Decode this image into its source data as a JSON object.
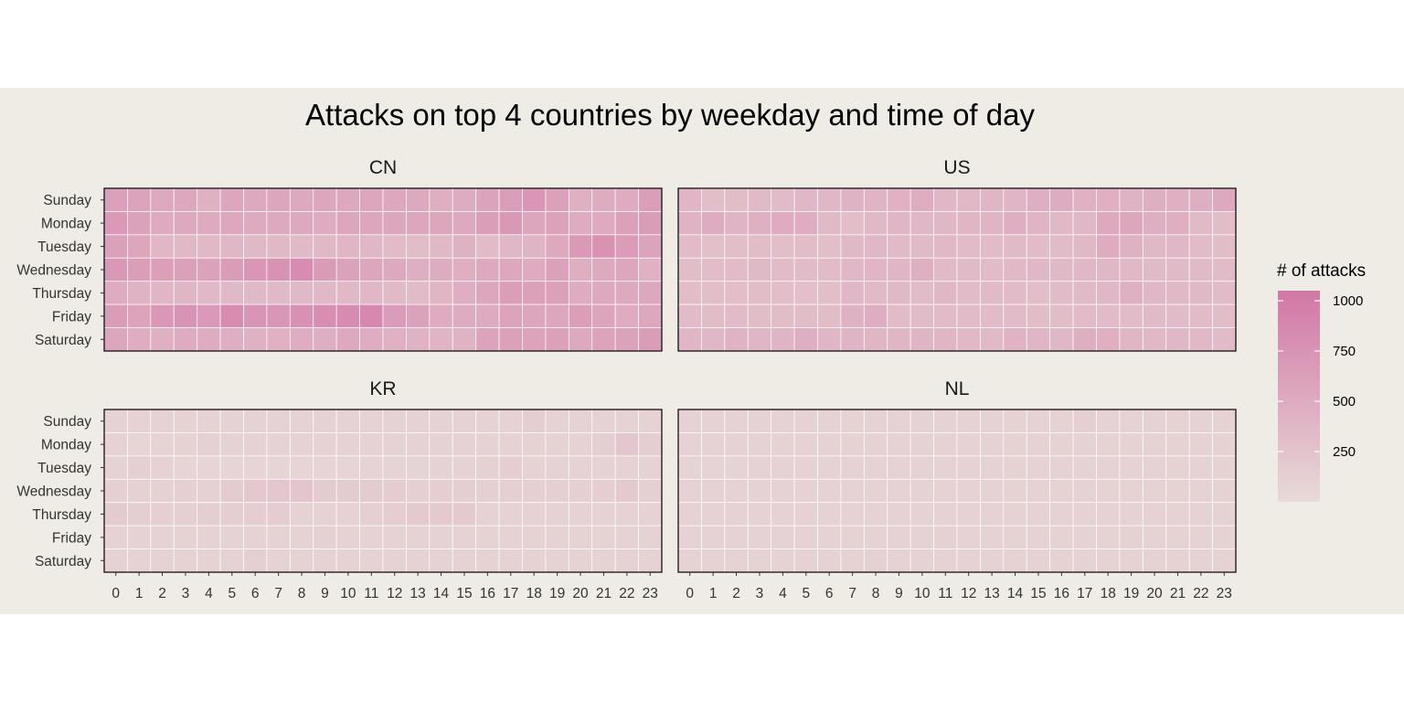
{
  "chart_data": {
    "type": "heatmap",
    "title": "Attacks on top 4 countries by weekday and time of day",
    "x_categories": [
      "0",
      "1",
      "2",
      "3",
      "4",
      "5",
      "6",
      "7",
      "8",
      "9",
      "10",
      "11",
      "12",
      "13",
      "14",
      "15",
      "16",
      "17",
      "18",
      "19",
      "20",
      "21",
      "22",
      "23"
    ],
    "y_categories": [
      "Sunday",
      "Monday",
      "Tuesday",
      "Wednesday",
      "Thursday",
      "Friday",
      "Saturday"
    ],
    "legend": {
      "title": "# of attacks",
      "ticks": [
        250,
        500,
        750,
        1000
      ],
      "range": [
        0,
        1050
      ],
      "color_low": "#e8dbd8",
      "color_high": "#d277a5",
      "position": "right"
    },
    "panels": [
      {
        "name": "CN",
        "values": [
          [
            620,
            580,
            520,
            540,
            430,
            550,
            530,
            560,
            530,
            560,
            540,
            560,
            540,
            520,
            470,
            490,
            580,
            640,
            720,
            620,
            450,
            490,
            500,
            640
          ],
          [
            680,
            600,
            510,
            520,
            510,
            540,
            510,
            530,
            520,
            500,
            560,
            550,
            550,
            550,
            550,
            530,
            640,
            700,
            560,
            600,
            490,
            510,
            620,
            650
          ],
          [
            610,
            550,
            380,
            370,
            370,
            380,
            360,
            360,
            350,
            360,
            400,
            380,
            330,
            320,
            360,
            430,
            330,
            380,
            410,
            520,
            680,
            760,
            660,
            580
          ],
          [
            700,
            640,
            630,
            620,
            600,
            650,
            720,
            760,
            830,
            670,
            600,
            560,
            530,
            460,
            490,
            470,
            530,
            540,
            500,
            620,
            470,
            520,
            560,
            440
          ],
          [
            500,
            420,
            400,
            400,
            360,
            360,
            360,
            360,
            360,
            370,
            370,
            380,
            350,
            340,
            390,
            460,
            550,
            640,
            620,
            620,
            490,
            520,
            530,
            540
          ],
          [
            650,
            590,
            700,
            750,
            680,
            830,
            730,
            720,
            780,
            810,
            840,
            870,
            660,
            600,
            500,
            490,
            510,
            580,
            560,
            560,
            640,
            570,
            500,
            540
          ],
          [
            550,
            480,
            450,
            500,
            490,
            460,
            430,
            440,
            480,
            460,
            520,
            480,
            440,
            420,
            410,
            420,
            580,
            620,
            590,
            620,
            520,
            590,
            600,
            650
          ]
        ]
      },
      {
        "name": "US",
        "values": [
          [
            400,
            300,
            320,
            350,
            330,
            380,
            380,
            420,
            410,
            440,
            480,
            380,
            370,
            390,
            400,
            460,
            490,
            440,
            450,
            420,
            470,
            450,
            460,
            520
          ],
          [
            420,
            490,
            410,
            450,
            500,
            480,
            350,
            300,
            360,
            400,
            380,
            380,
            390,
            410,
            460,
            410,
            370,
            380,
            530,
            560,
            460,
            470,
            350,
            320
          ],
          [
            330,
            280,
            300,
            320,
            300,
            320,
            300,
            360,
            380,
            350,
            350,
            370,
            330,
            330,
            350,
            330,
            340,
            360,
            490,
            430,
            360,
            380,
            330,
            320
          ],
          [
            320,
            310,
            340,
            360,
            340,
            330,
            330,
            380,
            400,
            400,
            450,
            350,
            350,
            340,
            370,
            380,
            360,
            380,
            380,
            370,
            350,
            350,
            350,
            330
          ],
          [
            320,
            300,
            300,
            320,
            300,
            290,
            300,
            380,
            350,
            360,
            330,
            380,
            340,
            350,
            330,
            300,
            340,
            350,
            380,
            450,
            380,
            370,
            360,
            330
          ],
          [
            340,
            320,
            330,
            320,
            320,
            320,
            320,
            430,
            480,
            330,
            330,
            330,
            330,
            330,
            330,
            320,
            320,
            330,
            330,
            330,
            350,
            340,
            330,
            320
          ],
          [
            400,
            380,
            420,
            400,
            410,
            460,
            400,
            410,
            390,
            390,
            410,
            390,
            370,
            350,
            420,
            400,
            380,
            470,
            450,
            390,
            370,
            380,
            370,
            340
          ]
        ]
      },
      {
        "name": "KR",
        "values": [
          [
            90,
            90,
            110,
            110,
            110,
            90,
            90,
            90,
            90,
            90,
            90,
            90,
            100,
            90,
            90,
            90,
            110,
            110,
            150,
            110,
            110,
            110,
            110,
            110
          ],
          [
            90,
            70,
            80,
            100,
            120,
            110,
            100,
            90,
            90,
            90,
            90,
            100,
            100,
            90,
            90,
            90,
            100,
            110,
            100,
            110,
            100,
            140,
            210,
            140
          ],
          [
            110,
            130,
            90,
            70,
            70,
            70,
            60,
            70,
            60,
            60,
            70,
            80,
            80,
            80,
            90,
            110,
            120,
            140,
            110,
            100,
            100,
            110,
            110,
            100
          ],
          [
            130,
            120,
            120,
            130,
            120,
            170,
            200,
            210,
            230,
            170,
            170,
            170,
            160,
            130,
            150,
            140,
            130,
            130,
            130,
            130,
            130,
            150,
            180,
            130
          ],
          [
            170,
            140,
            130,
            130,
            140,
            140,
            150,
            160,
            110,
            110,
            110,
            130,
            150,
            180,
            180,
            190,
            100,
            100,
            90,
            100,
            110,
            110,
            110,
            90
          ],
          [
            90,
            90,
            90,
            100,
            100,
            90,
            100,
            100,
            100,
            120,
            110,
            110,
            100,
            100,
            110,
            100,
            110,
            100,
            100,
            110,
            110,
            110,
            100,
            100
          ],
          [
            110,
            90,
            100,
            100,
            100,
            110,
            130,
            100,
            110,
            100,
            110,
            100,
            100,
            100,
            100,
            100,
            100,
            100,
            100,
            100,
            110,
            100,
            100,
            100
          ]
        ]
      },
      {
        "name": "NL",
        "values": [
          [
            90,
            90,
            90,
            100,
            100,
            100,
            100,
            100,
            100,
            100,
            100,
            110,
            100,
            110,
            110,
            110,
            110,
            130,
            110,
            110,
            100,
            100,
            100,
            100
          ],
          [
            90,
            90,
            90,
            100,
            100,
            100,
            100,
            100,
            100,
            100,
            100,
            100,
            100,
            100,
            100,
            100,
            100,
            100,
            100,
            100,
            100,
            100,
            100,
            100
          ],
          [
            80,
            80,
            80,
            90,
            90,
            90,
            90,
            90,
            90,
            90,
            100,
            100,
            100,
            100,
            110,
            100,
            100,
            100,
            100,
            100,
            100,
            100,
            100,
            100
          ],
          [
            90,
            90,
            90,
            90,
            90,
            90,
            90,
            90,
            100,
            100,
            100,
            100,
            100,
            100,
            100,
            100,
            100,
            100,
            100,
            100,
            100,
            100,
            100,
            100
          ],
          [
            110,
            90,
            90,
            90,
            90,
            90,
            100,
            100,
            100,
            100,
            100,
            110,
            110,
            100,
            100,
            100,
            100,
            100,
            100,
            110,
            100,
            100,
            100,
            100
          ],
          [
            90,
            90,
            90,
            90,
            90,
            90,
            100,
            100,
            100,
            110,
            110,
            120,
            110,
            110,
            110,
            100,
            100,
            110,
            110,
            120,
            110,
            110,
            100,
            100
          ],
          [
            100,
            100,
            100,
            100,
            100,
            100,
            110,
            110,
            120,
            110,
            110,
            100,
            100,
            100,
            110,
            100,
            100,
            100,
            100,
            100,
            110,
            100,
            100,
            100
          ]
        ]
      }
    ]
  }
}
